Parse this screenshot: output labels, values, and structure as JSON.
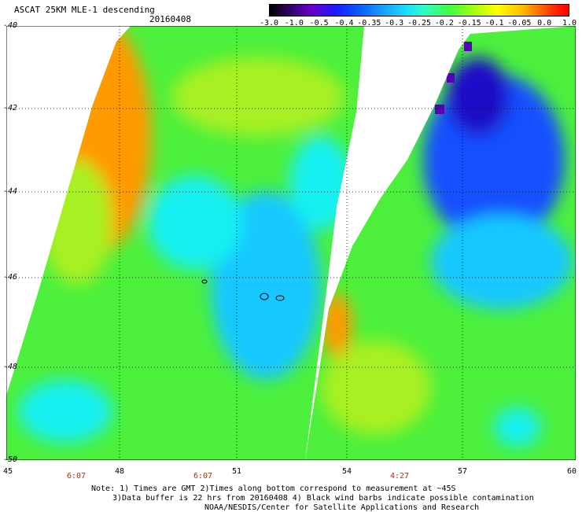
{
  "header": {
    "title": "ASCAT 25KM MLE-1 descending",
    "date": "20160408"
  },
  "colorbar": {
    "ticks": [
      "-3.0",
      "-1.0",
      "-0.5",
      "-0.4",
      "-0.35",
      "-0.3",
      "-0.25",
      "-0.2",
      "-0.15",
      "-0.1",
      "-0.05",
      "0.0",
      "1.0"
    ]
  },
  "map": {
    "lon_ticks": [
      "45",
      "48",
      "51",
      "54",
      "57",
      "60"
    ],
    "lat_ticks": [
      "-40",
      "-42",
      "-44",
      "-46",
      "-48",
      "-50"
    ],
    "pass_times": [
      "6:07",
      "6:07",
      "4:27"
    ],
    "colors": {
      "orange": "#ff9a00",
      "yellow_green": "#a8f020",
      "green": "#4cf03c",
      "cyan": "#14f0f0",
      "light_blue": "#18c8ff",
      "blue": "#1450ff",
      "dark_blue": "#1a10c8",
      "purple": "#5a00b4",
      "gap": "#ffffff"
    }
  },
  "notes": {
    "line1": "Note: 1) Times are GMT 2)Times along bottom correspond to measurement at ~45S",
    "line2": "3)Data buffer is 22 hrs from 20160408 4) Black wind barbs indicate possible contamination",
    "line3": "NOAA/NESDIS/Center for Satellite Applications and Research"
  }
}
